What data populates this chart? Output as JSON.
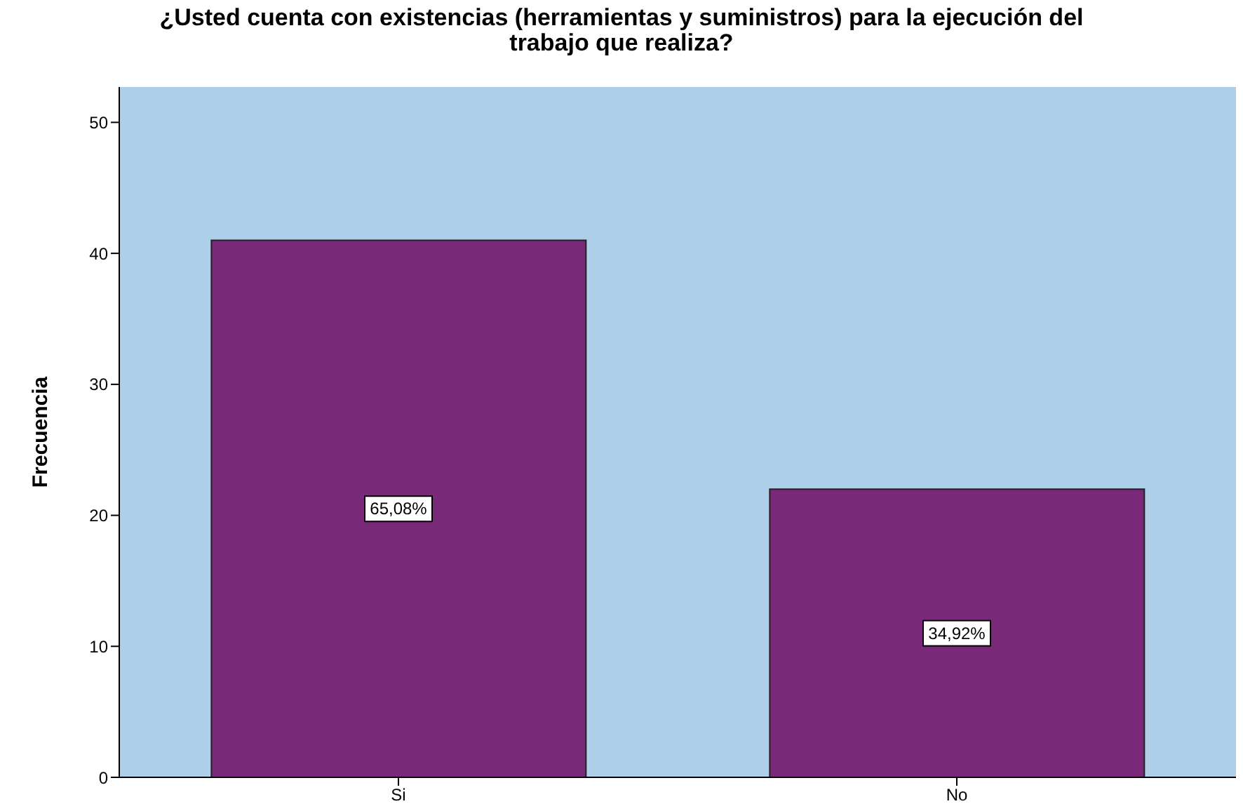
{
  "chart_data": {
    "type": "bar",
    "title": "¿Usted cuenta con existencias (herramientas y suministros) para la ejecución del trabajo que realiza?",
    "ylabel": "Frecuencia",
    "categories": [
      "Si",
      "No"
    ],
    "values": [
      41,
      22
    ],
    "color": "#7a2878",
    "annotations": [
      "65,08%",
      "34,92%"
    ],
    "ylim": [
      0,
      52.7
    ],
    "yticks": [
      0,
      10,
      20,
      30,
      40,
      50
    ],
    "grid": false,
    "legend": false
  }
}
